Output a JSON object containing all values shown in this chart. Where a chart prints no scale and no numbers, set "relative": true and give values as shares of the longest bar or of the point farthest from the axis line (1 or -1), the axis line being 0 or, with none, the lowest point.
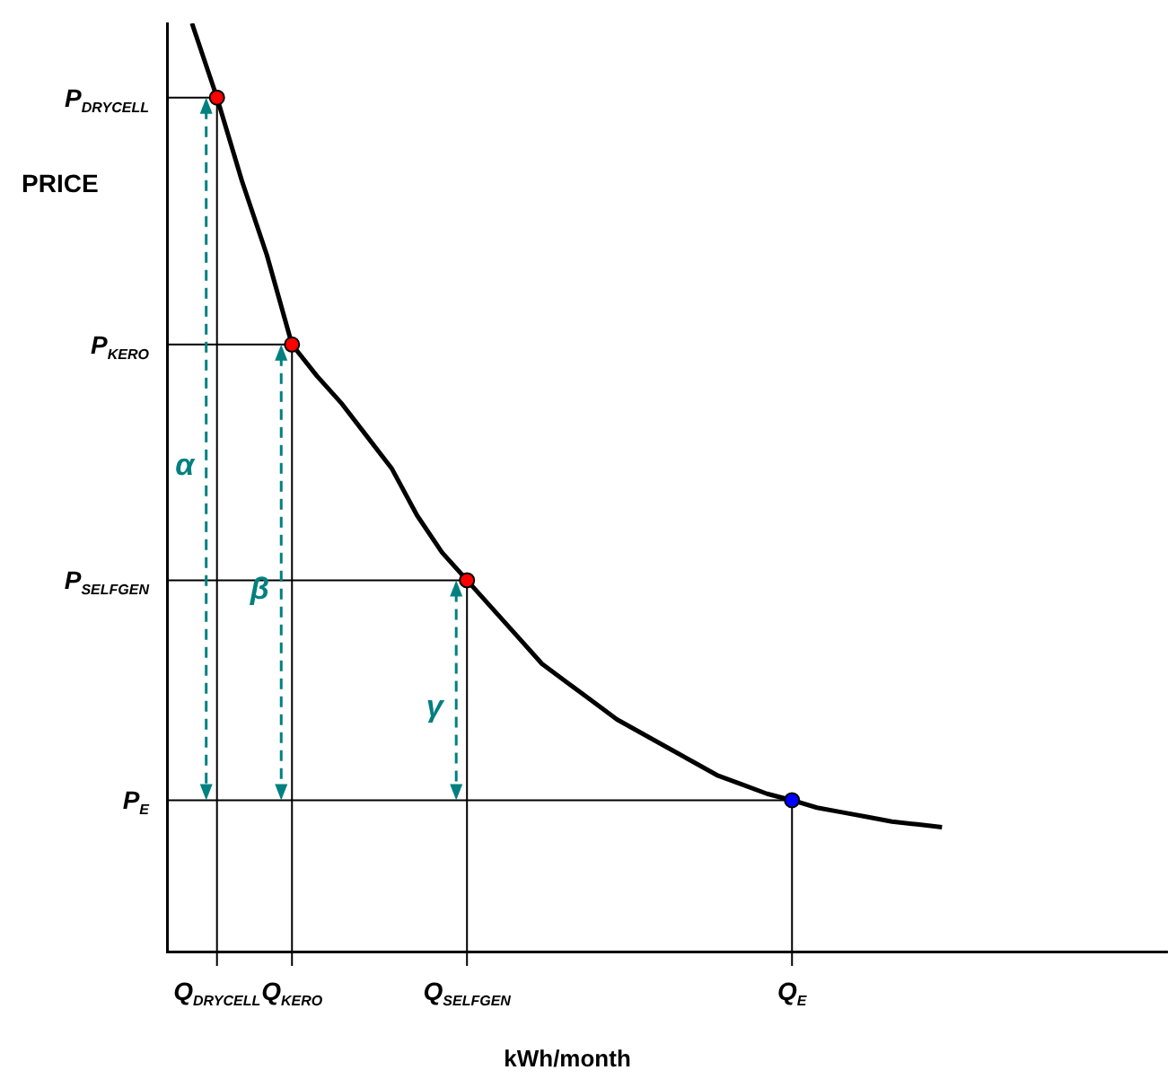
{
  "chart_data": {
    "type": "line",
    "xlabel": "kWh/month",
    "ylabel": "PRICE",
    "relative": true,
    "categories": [
      null,
      null,
      "Q$_{DRYCELL}$",
      null,
      null,
      "Q$_{KERO}$",
      null,
      null,
      null,
      null,
      null,
      null,
      "Q$_{SELFGEN}$",
      null,
      null,
      null,
      null,
      null,
      null,
      null,
      null,
      null,
      null,
      null,
      null,
      "Q$_{E}$",
      null,
      null,
      null,
      null,
      null,
      null,
      null,
      null,
      null,
      null,
      null,
      null,
      null,
      null,
      null
    ],
    "series": [
      {
        "color": "#000000",
        "values": [
          null,
          1.0,
          0.92,
          0.83,
          0.75,
          0.654,
          0.62,
          0.59,
          0.555,
          0.52,
          0.47,
          0.43,
          0.4,
          0.37,
          0.34,
          0.31,
          0.29,
          0.27,
          0.25,
          0.235,
          0.22,
          0.205,
          0.19,
          0.18,
          0.17,
          0.163,
          0.155,
          0.15,
          0.145,
          0.14,
          0.137,
          0.134,
          null,
          null,
          null,
          null,
          null,
          null,
          null,
          null,
          null
        ]
      },
      {
        "type": "scatter",
        "marker": "circle",
        "color": "#ff0000",
        "values": [
          null,
          null,
          0.92,
          null,
          null,
          0.654,
          null,
          null,
          null,
          null,
          null,
          null,
          0.4,
          null,
          null,
          null,
          null,
          null,
          null,
          null,
          null,
          null,
          null,
          null,
          null,
          null,
          null,
          null,
          null,
          null,
          null,
          null,
          null,
          null,
          null,
          null,
          null,
          null,
          null,
          null,
          null
        ]
      },
      {
        "type": "scatter",
        "marker": "circle",
        "color": "#0000ff",
        "values": [
          null,
          null,
          null,
          null,
          null,
          null,
          null,
          null,
          null,
          null,
          null,
          null,
          null,
          null,
          null,
          null,
          null,
          null,
          null,
          null,
          null,
          null,
          null,
          null,
          null,
          0.163,
          null,
          null,
          null,
          null,
          null,
          null,
          null,
          null,
          null,
          null,
          null,
          null,
          null,
          null,
          null
        ]
      }
    ],
    "annotations": [
      "α",
      "β",
      "γ",
      "P$_{DRYCELL}$",
      "P$_{KERO}$",
      "P$_{SELFGEN}$",
      "P$_{E}$"
    ],
    "grid": false,
    "legend": false
  }
}
